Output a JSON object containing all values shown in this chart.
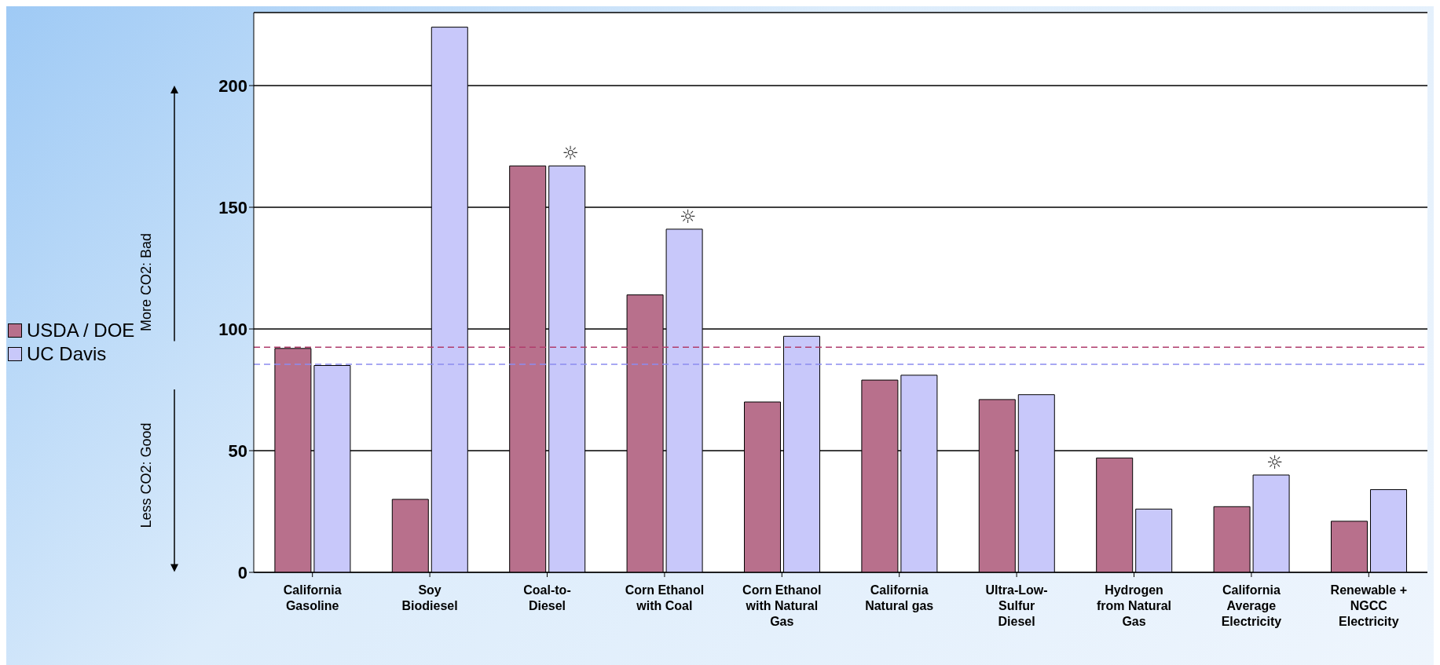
{
  "chart_data": {
    "type": "bar",
    "categories": [
      "California Gasoline",
      "Soy Biodiesel",
      "Coal-to-Diesel",
      "Corn Ethanol with Coal",
      "Corn Ethanol with Natural Gas",
      "California Natural gas",
      "Ultra-Low-Sulfur Diesel",
      "Hydrogen from Natural Gas",
      "California Average Electricity",
      "Renewable + NGCC Electricity"
    ],
    "series": [
      {
        "name": "USDA / DOE",
        "color": "#b8708c",
        "values": [
          92,
          30,
          167,
          114,
          70,
          79,
          71,
          47,
          27,
          21
        ]
      },
      {
        "name": "UC Davis",
        "color": "#c8c8fa",
        "values": [
          85,
          224,
          167,
          141,
          97,
          81,
          73,
          26,
          40,
          34
        ]
      }
    ],
    "ylim": [
      0,
      230
    ],
    "yticks": [
      0,
      50,
      100,
      150,
      200
    ],
    "grid": "y",
    "legend": "left",
    "ref_lines": [
      {
        "axis": "y",
        "value": 92.5,
        "color": "#b03c6c",
        "line_style": "dashed"
      },
      {
        "axis": "y",
        "value": 85.5,
        "color": "#8c8cf0",
        "line_style": "dashed"
      }
    ],
    "annotations": [
      "More CO2: Bad",
      "Less CO2: Good",
      {
        "text": "☼",
        "x": "Coal-to-Diesel",
        "y": 167
      },
      {
        "text": "☼",
        "x": "Corn Ethanol with Coal",
        "y": 141
      },
      {
        "text": "☼",
        "x": "California Average Electricity",
        "y": 40
      }
    ]
  }
}
